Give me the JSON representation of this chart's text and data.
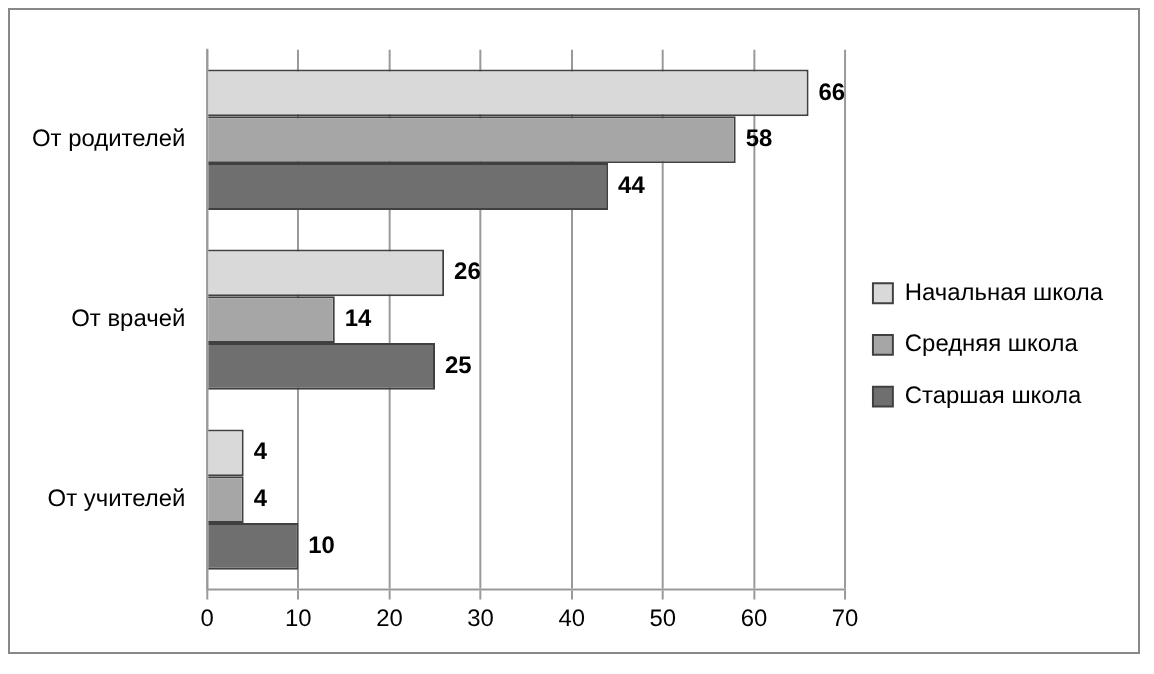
{
  "chart_data": {
    "type": "bar",
    "orientation": "horizontal",
    "categories": [
      "От родителей",
      "От врачей",
      "От учителей"
    ],
    "series": [
      {
        "name": "Начальная школа",
        "color": "#d9d9d9",
        "values": [
          66,
          26,
          4
        ]
      },
      {
        "name": "Средняя школа",
        "color": "#a6a6a6",
        "values": [
          58,
          14,
          4
        ]
      },
      {
        "name": "Старшая школа",
        "color": "#6f6f6f",
        "values": [
          44,
          25,
          10
        ]
      }
    ],
    "xlim": [
      0,
      70
    ],
    "xticks": [
      0,
      10,
      20,
      30,
      40,
      50,
      60,
      70
    ],
    "grid": "x",
    "legend": "right",
    "data_labels": true
  }
}
